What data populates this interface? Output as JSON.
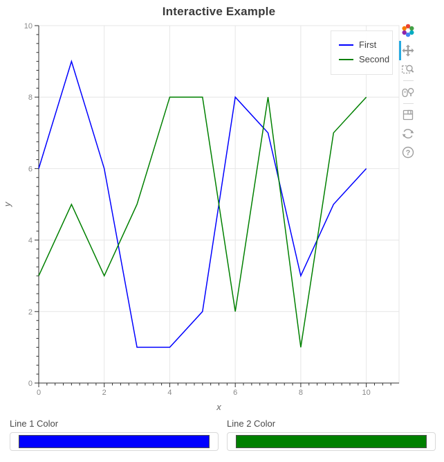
{
  "figure": {
    "title": "Interactive Example",
    "xlabel": "x",
    "ylabel": "y"
  },
  "legend": {
    "position": "top_right",
    "entries": [
      "First",
      "Second"
    ]
  },
  "toolbar": {
    "logo": "bokeh-logo",
    "tools": [
      {
        "name": "pan",
        "active": true
      },
      {
        "name": "box-zoom",
        "active": false
      },
      {
        "name": "wheel-zoom",
        "active": false
      },
      {
        "name": "save",
        "active": false
      },
      {
        "name": "reset",
        "active": false
      },
      {
        "name": "help",
        "active": false
      }
    ],
    "active_color": "#27aae1"
  },
  "widgets": [
    {
      "label": "Line 1 Color",
      "value": "#0000ff"
    },
    {
      "label": "Line 2 Color",
      "value": "#008000"
    }
  ],
  "chart_data": {
    "type": "line",
    "title": "Interactive Example",
    "xlabel": "x",
    "ylabel": "y",
    "x": [
      0,
      1,
      2,
      3,
      4,
      5,
      6,
      7,
      8,
      9,
      10
    ],
    "series": [
      {
        "name": "First",
        "color": "#0000ff",
        "values": [
          6,
          9,
          6,
          1,
          1,
          2,
          8,
          7,
          3,
          5,
          6
        ]
      },
      {
        "name": "Second",
        "color": "#008000",
        "values": [
          3,
          5,
          3,
          5,
          8,
          8,
          2,
          8,
          1,
          7,
          8
        ]
      }
    ],
    "xlim": [
      0,
      11
    ],
    "ylim": [
      0,
      10
    ],
    "x_major_ticks": [
      0,
      2,
      4,
      6,
      8,
      10
    ],
    "y_major_ticks": [
      0,
      2,
      4,
      6,
      8,
      10
    ],
    "minor_tick_step": 0.25,
    "grid": true,
    "grid_color": "#e6e6e6",
    "axis_color": "#303030",
    "tick_label_color": "#898989",
    "axis_label_color": "#666666",
    "legend_position": "top_right"
  }
}
